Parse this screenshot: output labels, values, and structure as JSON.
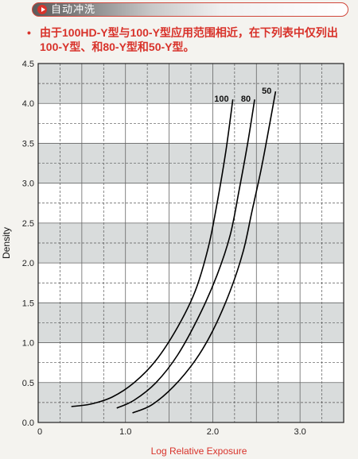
{
  "header": {
    "title": "自动冲洗"
  },
  "note": {
    "bullet": "•",
    "text": "由于100HD-Y型与100-Y型应用范围相近，在下列表中仅列出100-Y型、和80-Y型和50-Y型。"
  },
  "colors": {
    "accent": "#d8322a",
    "band": "#d9dcdc",
    "grid": "#444444"
  },
  "chart_data": {
    "type": "line",
    "xlabel": "Log Relative Exposure",
    "ylabel": "Density",
    "xlim": [
      0,
      3.5
    ],
    "ylim": [
      0,
      4.5
    ],
    "x_ticks": [
      0,
      1,
      2,
      3
    ],
    "x_tick_labels": [
      "0",
      "1.0",
      "2.0",
      "3.0"
    ],
    "y_ticks": [
      0,
      0.5,
      1,
      1.5,
      2,
      2.5,
      3,
      3.5,
      4,
      4.5
    ],
    "y_tick_labels": [
      "0.0",
      "0.5",
      "1.0",
      "1.5",
      "2.0",
      "2.5",
      "3.0",
      "3.5",
      "4.0",
      "4.5"
    ],
    "series": [
      {
        "name": "100",
        "x": [
          0.38,
          0.6,
          0.85,
          1.1,
          1.35,
          1.6,
          1.8,
          1.95,
          2.05,
          2.15,
          2.23
        ],
        "y": [
          0.2,
          0.23,
          0.32,
          0.5,
          0.78,
          1.2,
          1.65,
          2.2,
          2.75,
          3.4,
          4.05
        ]
      },
      {
        "name": "80",
        "x": [
          0.9,
          1.1,
          1.35,
          1.6,
          1.85,
          2.05,
          2.2,
          2.3,
          2.4,
          2.48
        ],
        "y": [
          0.18,
          0.28,
          0.5,
          0.85,
          1.35,
          1.85,
          2.35,
          2.9,
          3.5,
          4.05
        ]
      },
      {
        "name": "50",
        "x": [
          1.08,
          1.3,
          1.55,
          1.8,
          2.0,
          2.2,
          2.35,
          2.45,
          2.55,
          2.62,
          2.72
        ],
        "y": [
          0.12,
          0.22,
          0.45,
          0.78,
          1.15,
          1.65,
          2.15,
          2.65,
          3.15,
          3.55,
          4.15
        ]
      }
    ],
    "grid": true
  }
}
